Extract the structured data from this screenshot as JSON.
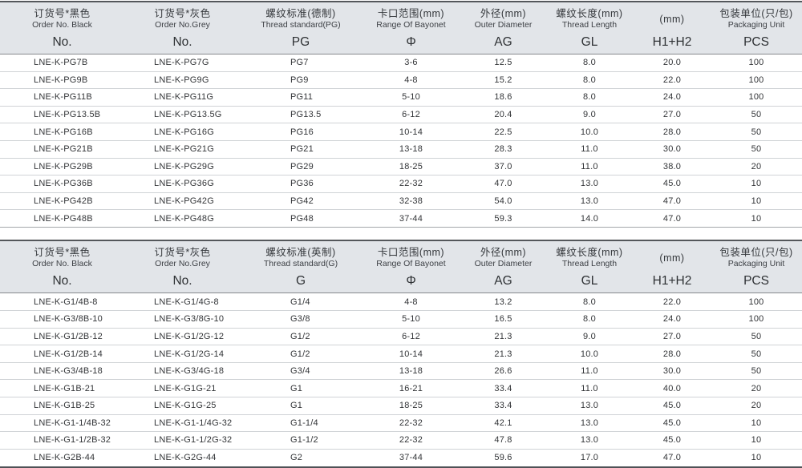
{
  "colors": {
    "header_bg": "#e2e5e9",
    "border_dark": "#54575b",
    "border_medium": "#86898d",
    "row_separator": "#d0d3d6",
    "text_primary": "#333538"
  },
  "tables": [
    {
      "id": "pg-spec-table",
      "columns": [
        {
          "zh": "订货号*黑色",
          "en": "Order No. Black",
          "code": "No."
        },
        {
          "zh": "订货号*灰色",
          "en": "Order No.Grey",
          "code": "No."
        },
        {
          "zh": "螺纹标准(德制)",
          "en": "Thread standard(PG)",
          "code": "PG"
        },
        {
          "zh": "卡口范围(mm)",
          "en": "Range Of Bayonet",
          "code": "Φ"
        },
        {
          "zh": "外径(mm)",
          "en": "Outer Diameter",
          "code": "AG"
        },
        {
          "zh": "螺纹长度(mm)",
          "en": "Thread Length",
          "code": "GL"
        },
        {
          "zh": "(mm)",
          "en": "",
          "code": "H1+H2"
        },
        {
          "zh": "包装单位(只/包)",
          "en": "Packaging Unit",
          "code": "PCS"
        }
      ],
      "rows": [
        [
          "LNE-K-PG7B",
          "LNE-K-PG7G",
          "PG7",
          "3-6",
          "12.5",
          "8.0",
          "20.0",
          "100"
        ],
        [
          "LNE-K-PG9B",
          "LNE-K-PG9G",
          "PG9",
          "4-8",
          "15.2",
          "8.0",
          "22.0",
          "100"
        ],
        [
          "LNE-K-PG11B",
          "LNE-K-PG11G",
          "PG11",
          "5-10",
          "18.6",
          "8.0",
          "24.0",
          "100"
        ],
        [
          "LNE-K-PG13.5B",
          "LNE-K-PG13.5G",
          "PG13.5",
          "6-12",
          "20.4",
          "9.0",
          "27.0",
          "50"
        ],
        [
          "LNE-K-PG16B",
          "LNE-K-PG16G",
          "PG16",
          "10-14",
          "22.5",
          "10.0",
          "28.0",
          "50"
        ],
        [
          "LNE-K-PG21B",
          "LNE-K-PG21G",
          "PG21",
          "13-18",
          "28.3",
          "11.0",
          "30.0",
          "50"
        ],
        [
          "LNE-K-PG29B",
          "LNE-K-PG29G",
          "PG29",
          "18-25",
          "37.0",
          "11.0",
          "38.0",
          "20"
        ],
        [
          "LNE-K-PG36B",
          "LNE-K-PG36G",
          "PG36",
          "22-32",
          "47.0",
          "13.0",
          "45.0",
          "10"
        ],
        [
          "LNE-K-PG42B",
          "LNE-K-PG42G",
          "PG42",
          "32-38",
          "54.0",
          "13.0",
          "47.0",
          "10"
        ],
        [
          "LNE-K-PG48B",
          "LNE-K-PG48G",
          "PG48",
          "37-44",
          "59.3",
          "14.0",
          "47.0",
          "10"
        ]
      ]
    },
    {
      "id": "g-spec-table",
      "columns": [
        {
          "zh": "订货号*黑色",
          "en": "Order No. Black",
          "code": "No."
        },
        {
          "zh": "订货号*灰色",
          "en": "Order No.Grey",
          "code": "No."
        },
        {
          "zh": "螺纹标准(英制)",
          "en": "Thread standard(G)",
          "code": "G"
        },
        {
          "zh": "卡口范围(mm)",
          "en": "Range Of Bayonet",
          "code": "Φ"
        },
        {
          "zh": "外径(mm)",
          "en": "Outer Diameter",
          "code": "AG"
        },
        {
          "zh": "螺纹长度(mm)",
          "en": "Thread Length",
          "code": "GL"
        },
        {
          "zh": "(mm)",
          "en": "",
          "code": "H1+H2"
        },
        {
          "zh": "包装单位(只/包)",
          "en": "Packaging Unit",
          "code": "PCS"
        }
      ],
      "rows": [
        [
          "LNE-K-G1/4B-8",
          "LNE-K-G1/4G-8",
          "G1/4",
          "4-8",
          "13.2",
          "8.0",
          "22.0",
          "100"
        ],
        [
          "LNE-K-G3/8B-10",
          "LNE-K-G3/8G-10",
          "G3/8",
          "5-10",
          "16.5",
          "8.0",
          "24.0",
          "100"
        ],
        [
          "LNE-K-G1/2B-12",
          "LNE-K-G1/2G-12",
          "G1/2",
          "6-12",
          "21.3",
          "9.0",
          "27.0",
          "50"
        ],
        [
          "LNE-K-G1/2B-14",
          "LNE-K-G1/2G-14",
          "G1/2",
          "10-14",
          "21.3",
          "10.0",
          "28.0",
          "50"
        ],
        [
          "LNE-K-G3/4B-18",
          "LNE-K-G3/4G-18",
          "G3/4",
          "13-18",
          "26.6",
          "11.0",
          "30.0",
          "50"
        ],
        [
          "LNE-K-G1B-21",
          "LNE-K-G1G-21",
          "G1",
          "16-21",
          "33.4",
          "11.0",
          "40.0",
          "20"
        ],
        [
          "LNE-K-G1B-25",
          "LNE-K-G1G-25",
          "G1",
          "18-25",
          "33.4",
          "13.0",
          "45.0",
          "20"
        ],
        [
          "LNE-K-G1-1/4B-32",
          "LNE-K-G1-1/4G-32",
          "G1-1/4",
          "22-32",
          "42.1",
          "13.0",
          "45.0",
          "10"
        ],
        [
          "LNE-K-G1-1/2B-32",
          "LNE-K-G1-1/2G-32",
          "G1-1/2",
          "22-32",
          "47.8",
          "13.0",
          "45.0",
          "10"
        ],
        [
          "LNE-K-G2B-44",
          "LNE-K-G2G-44",
          "G2",
          "37-44",
          "59.6",
          "17.0",
          "47.0",
          "10"
        ]
      ]
    }
  ]
}
